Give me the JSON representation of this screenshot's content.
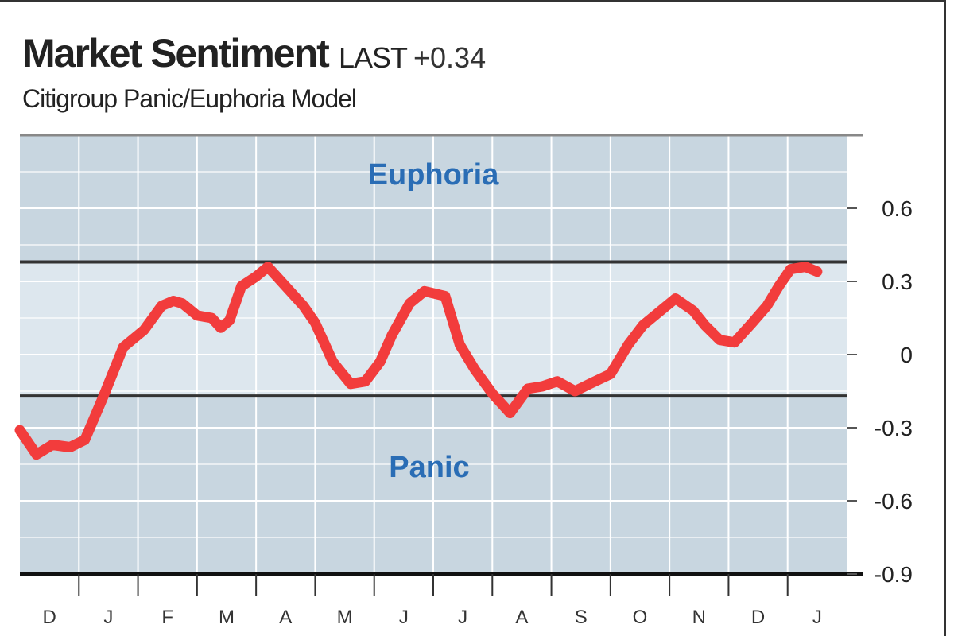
{
  "header": {
    "title": "Market Sentiment",
    "last_label": "LAST",
    "last_value": "+0.34",
    "subtitle": "Citigroup Panic/Euphoria Model"
  },
  "colors": {
    "zone": "#c8d6e0",
    "neutral_band": "#dde7ee",
    "line": "#f23c3c",
    "zone_label": "#2a6db5",
    "threshold": "#333333"
  },
  "chart_data": {
    "type": "line",
    "title": "Market Sentiment",
    "subtitle": "Citigroup Panic/Euphoria Model",
    "xlabel": "",
    "ylabel": "",
    "ylim": [
      -0.9,
      0.9
    ],
    "y_ticks": [
      0.6,
      0.3,
      0,
      -0.3,
      -0.6,
      -0.9
    ],
    "y_tick_labels": [
      "0.6",
      "0.3",
      "0",
      "-0.3",
      "-0.6",
      "-0.9"
    ],
    "months": [
      "D",
      "J",
      "F",
      "M",
      "A",
      "M",
      "J",
      "J",
      "A",
      "S",
      "O",
      "N",
      "D",
      "J"
    ],
    "thresholds": {
      "euphoria": 0.38,
      "panic": -0.17
    },
    "zone_labels": {
      "euphoria": "Euphoria",
      "panic": "Panic"
    },
    "grid": true,
    "series": [
      {
        "x": [
          0.0,
          0.28,
          0.55,
          0.85,
          1.1,
          1.4,
          1.75,
          2.1,
          2.4,
          2.6,
          2.75,
          3.0,
          3.25,
          3.4,
          3.55,
          3.75,
          4.0,
          4.2,
          4.5,
          4.8,
          5.0,
          5.3,
          5.6,
          5.85,
          6.1,
          6.3,
          6.6,
          6.85,
          7.2,
          7.45,
          7.7,
          8.0,
          8.3,
          8.6,
          8.85,
          9.1,
          9.4,
          9.65,
          10.0,
          10.3,
          10.55,
          10.8,
          11.1,
          11.4,
          11.6,
          11.85,
          12.1,
          12.4,
          12.65,
          12.85,
          13.05,
          13.3,
          13.5
        ],
        "y": [
          -0.31,
          -0.41,
          -0.37,
          -0.38,
          -0.35,
          -0.18,
          0.03,
          0.1,
          0.2,
          0.22,
          0.21,
          0.16,
          0.15,
          0.11,
          0.14,
          0.28,
          0.32,
          0.36,
          0.28,
          0.2,
          0.13,
          -0.03,
          -0.12,
          -0.11,
          -0.03,
          0.08,
          0.21,
          0.26,
          0.24,
          0.04,
          -0.06,
          -0.16,
          -0.24,
          -0.14,
          -0.13,
          -0.11,
          -0.15,
          -0.12,
          -0.08,
          0.04,
          0.12,
          0.17,
          0.23,
          0.18,
          0.12,
          0.06,
          0.05,
          0.13,
          0.2,
          0.28,
          0.35,
          0.36,
          0.34
        ]
      }
    ]
  }
}
